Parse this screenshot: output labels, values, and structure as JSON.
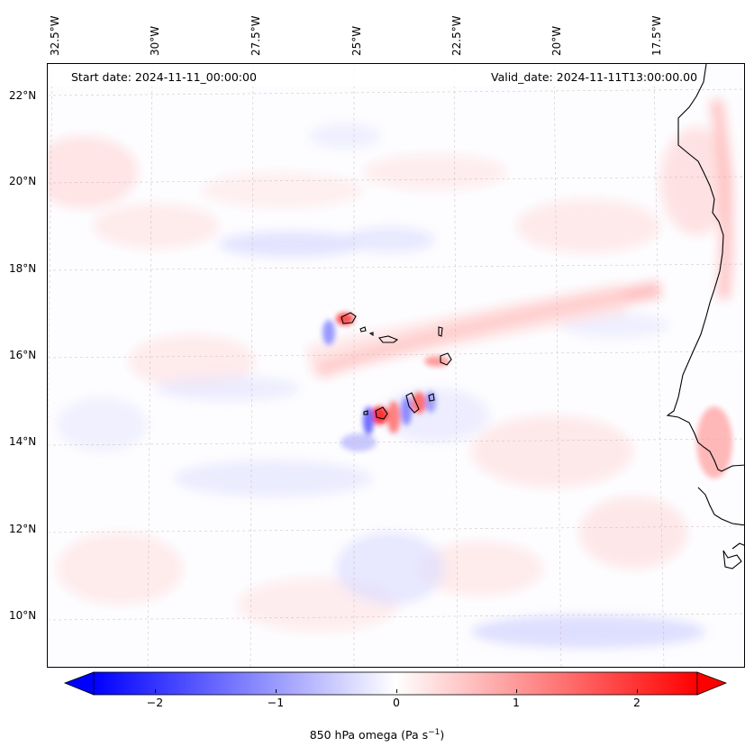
{
  "map": {
    "start_date": "Start date: 2024-11-11_00:00:00",
    "valid_date": "Valid_date: 2024-11-11T13:00:00.00",
    "lon_labels": [
      "32.5°W",
      "30°W",
      "27.5°W",
      "25°W",
      "22.5°W",
      "20°W",
      "17.5°W"
    ],
    "lat_labels": [
      "22°N",
      "20°N",
      "18°N",
      "16°N",
      "14°N",
      "12°N",
      "10°N"
    ],
    "field": "850 hPa omega",
    "positive_color": "#ff0000",
    "negative_color": "#0000ff"
  },
  "colorbar": {
    "label": "850 hPa omega (Pa s",
    "label_exponent": "−1",
    "label_close": ")",
    "ticks": [
      "−2",
      "−1",
      "0",
      "1",
      "2"
    ],
    "tick_values": [
      -2,
      -1,
      0,
      1,
      2
    ],
    "range": [
      -2.6,
      2.6
    ],
    "extend": "both"
  }
}
